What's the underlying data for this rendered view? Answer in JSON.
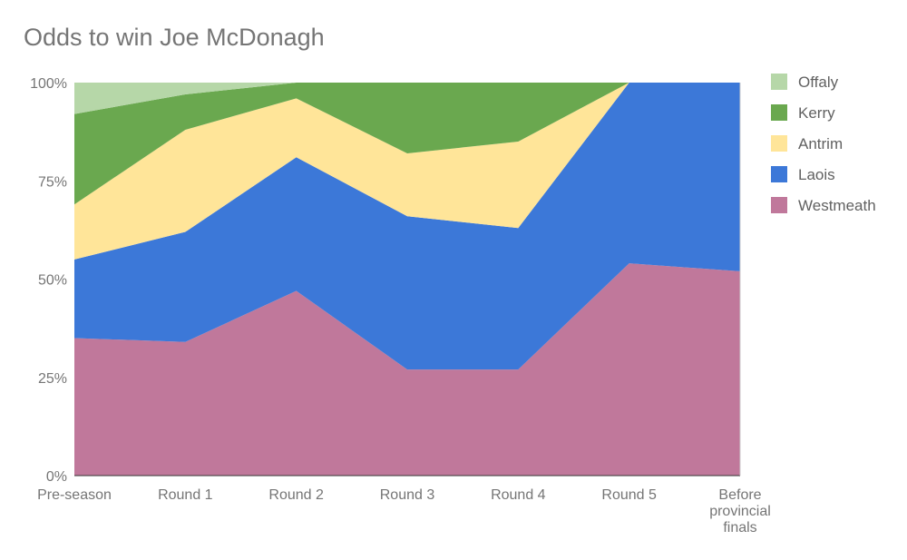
{
  "chart_data": {
    "type": "area",
    "stacked": "percent",
    "title": "Odds to win Joe McDonagh",
    "categories": [
      "Pre-season",
      "Round 1",
      "Round 2",
      "Round 3",
      "Round 4",
      "Round 5",
      "Before provincial finals"
    ],
    "y_ticks": [
      "0%",
      "25%",
      "50%",
      "75%",
      "100%"
    ],
    "ylim": [
      0,
      100
    ],
    "legend_position": "right",
    "series": [
      {
        "name": "Westmeath",
        "color": "#c0789b",
        "values": [
          35,
          34,
          47,
          27,
          27,
          54,
          52
        ]
      },
      {
        "name": "Laois",
        "color": "#3c78d8",
        "values": [
          20,
          28,
          34,
          39,
          36,
          46,
          48
        ]
      },
      {
        "name": "Antrim",
        "color": "#ffe599",
        "values": [
          14,
          26,
          15,
          16,
          22,
          0,
          0
        ]
      },
      {
        "name": "Kerry",
        "color": "#6aa84f",
        "values": [
          23,
          9,
          4,
          18,
          15,
          0,
          0
        ]
      },
      {
        "name": "Offaly",
        "color": "#b6d7a8",
        "values": [
          8,
          3,
          0,
          0,
          0,
          0,
          0
        ]
      }
    ]
  }
}
